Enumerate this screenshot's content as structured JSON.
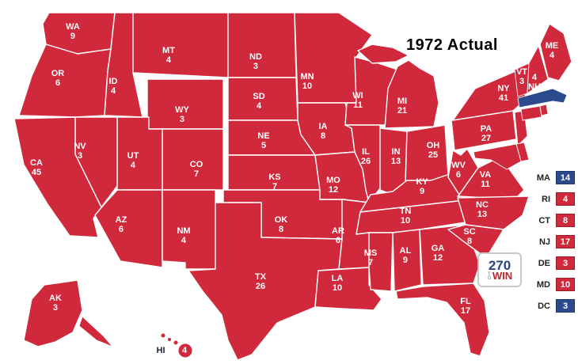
{
  "title": "1972 Actual",
  "colors": {
    "rep": "#d1293c",
    "dem": "#2b4b8e"
  },
  "sidebar_text_color": "#222222",
  "hi_abbr_color": "#1c2430",
  "logo": {
    "num": "270",
    "to": "TO",
    "win": "WIN"
  },
  "states": [
    {
      "id": "wa",
      "abbr": "WA",
      "ev": "9",
      "party": "rep",
      "map_label": true,
      "sidebar": false
    },
    {
      "id": "or",
      "abbr": "OR",
      "ev": "6",
      "party": "rep",
      "map_label": true,
      "sidebar": false
    },
    {
      "id": "ca",
      "abbr": "CA",
      "ev": "45",
      "party": "rep",
      "map_label": true,
      "sidebar": false
    },
    {
      "id": "id",
      "abbr": "ID",
      "ev": "4",
      "party": "rep",
      "map_label": true,
      "sidebar": false
    },
    {
      "id": "nv",
      "abbr": "NV",
      "ev": "3",
      "party": "rep",
      "map_label": true,
      "sidebar": false
    },
    {
      "id": "ut",
      "abbr": "UT",
      "ev": "4",
      "party": "rep",
      "map_label": true,
      "sidebar": false
    },
    {
      "id": "az",
      "abbr": "AZ",
      "ev": "6",
      "party": "rep",
      "map_label": true,
      "sidebar": false
    },
    {
      "id": "mt",
      "abbr": "MT",
      "ev": "4",
      "party": "rep",
      "map_label": true,
      "sidebar": false
    },
    {
      "id": "wy",
      "abbr": "WY",
      "ev": "3",
      "party": "rep",
      "map_label": true,
      "sidebar": false
    },
    {
      "id": "co",
      "abbr": "CO",
      "ev": "7",
      "party": "rep",
      "map_label": true,
      "sidebar": false
    },
    {
      "id": "nm",
      "abbr": "NM",
      "ev": "4",
      "party": "rep",
      "map_label": true,
      "sidebar": false
    },
    {
      "id": "nd",
      "abbr": "ND",
      "ev": "3",
      "party": "rep",
      "map_label": true,
      "sidebar": false
    },
    {
      "id": "sd",
      "abbr": "SD",
      "ev": "4",
      "party": "rep",
      "map_label": true,
      "sidebar": false
    },
    {
      "id": "ne",
      "abbr": "NE",
      "ev": "5",
      "party": "rep",
      "map_label": true,
      "sidebar": false
    },
    {
      "id": "ks",
      "abbr": "KS",
      "ev": "7",
      "party": "rep",
      "map_label": true,
      "sidebar": false
    },
    {
      "id": "ok",
      "abbr": "OK",
      "ev": "8",
      "party": "rep",
      "map_label": true,
      "sidebar": false
    },
    {
      "id": "tx",
      "abbr": "TX",
      "ev": "26",
      "party": "rep",
      "map_label": true,
      "sidebar": false
    },
    {
      "id": "mn",
      "abbr": "MN",
      "ev": "10",
      "party": "rep",
      "map_label": true,
      "sidebar": false
    },
    {
      "id": "ia",
      "abbr": "IA",
      "ev": "8",
      "party": "rep",
      "map_label": true,
      "sidebar": false
    },
    {
      "id": "mo",
      "abbr": "MO",
      "ev": "12",
      "party": "rep",
      "map_label": true,
      "sidebar": false
    },
    {
      "id": "ar",
      "abbr": "AR",
      "ev": "6",
      "party": "rep",
      "map_label": true,
      "sidebar": false
    },
    {
      "id": "la",
      "abbr": "LA",
      "ev": "10",
      "party": "rep",
      "map_label": true,
      "sidebar": false
    },
    {
      "id": "wi",
      "abbr": "WI",
      "ev": "11",
      "party": "rep",
      "map_label": true,
      "sidebar": false
    },
    {
      "id": "il",
      "abbr": "IL",
      "ev": "26",
      "party": "rep",
      "map_label": true,
      "sidebar": false
    },
    {
      "id": "in",
      "abbr": "IN",
      "ev": "13",
      "party": "rep",
      "map_label": true,
      "sidebar": false
    },
    {
      "id": "oh",
      "abbr": "OH",
      "ev": "25",
      "party": "rep",
      "map_label": true,
      "sidebar": false
    },
    {
      "id": "mi",
      "abbr": "MI",
      "ev": "21",
      "party": "rep",
      "map_label": true,
      "sidebar": false
    },
    {
      "id": "ky",
      "abbr": "KY",
      "ev": "9",
      "party": "rep",
      "map_label": true,
      "sidebar": false
    },
    {
      "id": "tn",
      "abbr": "TN",
      "ev": "10",
      "party": "rep",
      "map_label": true,
      "sidebar": false
    },
    {
      "id": "ms",
      "abbr": "MS",
      "ev": "7",
      "party": "rep",
      "map_label": true,
      "sidebar": false
    },
    {
      "id": "al",
      "abbr": "AL",
      "ev": "9",
      "party": "rep",
      "map_label": true,
      "sidebar": false
    },
    {
      "id": "ga",
      "abbr": "GA",
      "ev": "12",
      "party": "rep",
      "map_label": true,
      "sidebar": false
    },
    {
      "id": "fl",
      "abbr": "FL",
      "ev": "17",
      "party": "rep",
      "map_label": true,
      "sidebar": false
    },
    {
      "id": "sc",
      "abbr": "SC",
      "ev": "8",
      "party": "rep",
      "map_label": true,
      "sidebar": false
    },
    {
      "id": "nc",
      "abbr": "NC",
      "ev": "13",
      "party": "rep",
      "map_label": true,
      "sidebar": false
    },
    {
      "id": "va",
      "abbr": "VA",
      "ev": "11",
      "party": "rep",
      "map_label": true,
      "sidebar": false
    },
    {
      "id": "wv",
      "abbr": "WV",
      "ev": "6",
      "party": "rep",
      "map_label": true,
      "sidebar": false
    },
    {
      "id": "pa",
      "abbr": "PA",
      "ev": "27",
      "party": "rep",
      "map_label": true,
      "sidebar": false
    },
    {
      "id": "ny",
      "abbr": "NY",
      "ev": "41",
      "party": "rep",
      "map_label": true,
      "sidebar": false
    },
    {
      "id": "vt",
      "abbr": "VT",
      "ev": "3",
      "party": "rep",
      "map_label": true,
      "sidebar": false
    },
    {
      "id": "nh",
      "abbr": "NH",
      "ev": "4",
      "party": "rep",
      "map_label": true,
      "sidebar": false,
      "ev_first": true
    },
    {
      "id": "me",
      "abbr": "ME",
      "ev": "4",
      "party": "rep",
      "map_label": true,
      "sidebar": false
    },
    {
      "id": "ak",
      "abbr": "AK",
      "ev": "3",
      "party": "rep",
      "map_label": true,
      "sidebar": false
    },
    {
      "id": "hi",
      "abbr": "HI",
      "ev": "4",
      "party": "rep",
      "map_label": true,
      "sidebar": false
    },
    {
      "id": "ma",
      "abbr": "MA",
      "ev": "14",
      "party": "dem",
      "map_label": false,
      "sidebar": true
    },
    {
      "id": "ri",
      "abbr": "RI",
      "ev": "4",
      "party": "rep",
      "map_label": false,
      "sidebar": true
    },
    {
      "id": "ct",
      "abbr": "CT",
      "ev": "8",
      "party": "rep",
      "map_label": false,
      "sidebar": true
    },
    {
      "id": "nj",
      "abbr": "NJ",
      "ev": "17",
      "party": "rep",
      "map_label": false,
      "sidebar": true
    },
    {
      "id": "de",
      "abbr": "DE",
      "ev": "3",
      "party": "rep",
      "map_label": false,
      "sidebar": true
    },
    {
      "id": "md",
      "abbr": "MD",
      "ev": "10",
      "party": "rep",
      "map_label": false,
      "sidebar": true
    },
    {
      "id": "dc",
      "abbr": "DC",
      "ev": "3",
      "party": "dem",
      "map_label": false,
      "sidebar": true
    }
  ]
}
